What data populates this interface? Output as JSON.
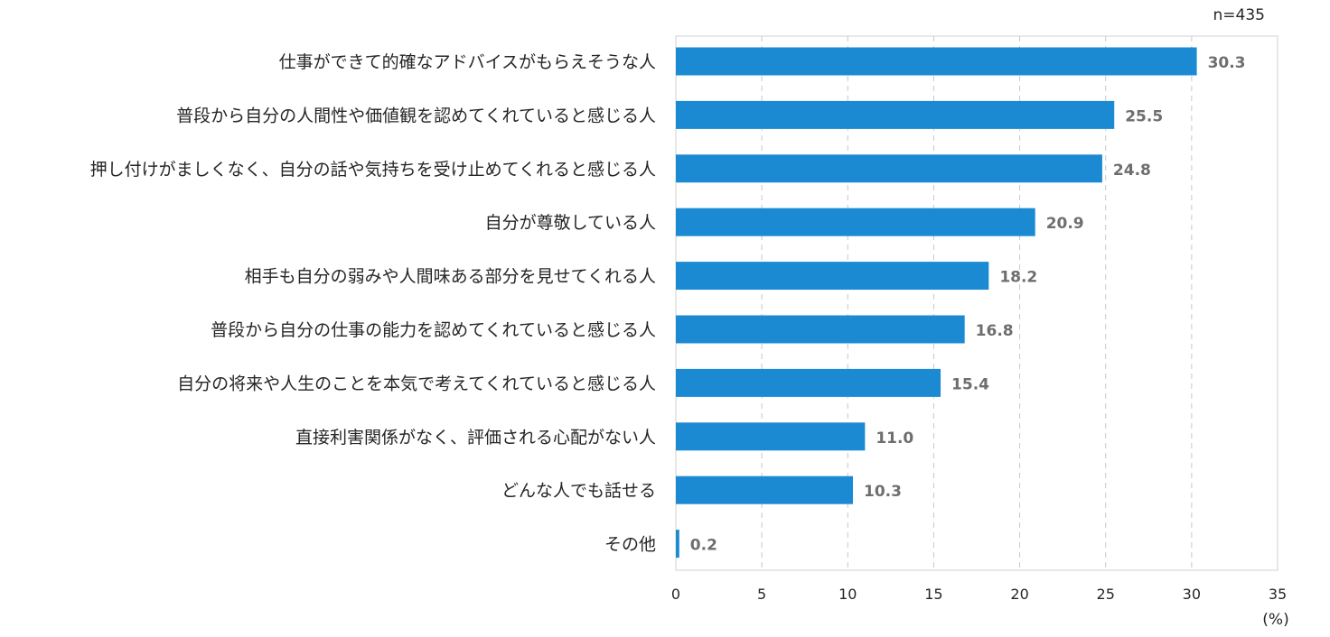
{
  "note": "n=435",
  "chart_data": {
    "type": "bar",
    "orientation": "horizontal",
    "title": "",
    "xlabel": "",
    "ylabel": "",
    "unit_label": "(%)",
    "categories": [
      "仕事ができて的確なアドバイスがもらえそうな人",
      "普段から自分の人間性や価値観を認めてくれていると感じる人",
      "押し付けがましくなく、自分の話や気持ちを受け止めてくれると感じる人",
      "自分が尊敬している人",
      "相手も自分の弱みや人間味ある部分を見せてくれる人",
      "普段から自分の仕事の能力を認めてくれていると感じる人",
      "自分の将来や人生のことを本気で考えてくれていると感じる人",
      "直接利害関係がなく、評価される心配がない人",
      "どんな人でも話せる",
      "その他"
    ],
    "values": [
      30.3,
      25.5,
      24.8,
      20.9,
      18.2,
      16.8,
      15.4,
      11.0,
      10.3,
      0.2
    ],
    "value_labels": [
      "30.3",
      "25.5",
      "24.8",
      "20.9",
      "18.2",
      "16.8",
      "15.4",
      "11.0",
      "10.3",
      "0.2"
    ],
    "xlim": [
      0,
      35
    ],
    "xticks": [
      "0",
      "5",
      "10",
      "15",
      "20",
      "25",
      "30",
      "35"
    ],
    "grid": "vertical dashed",
    "bar_color": "#1b8ad3",
    "gridline_color": "#c8c8c8",
    "frame_color": "#d0d0d0"
  }
}
